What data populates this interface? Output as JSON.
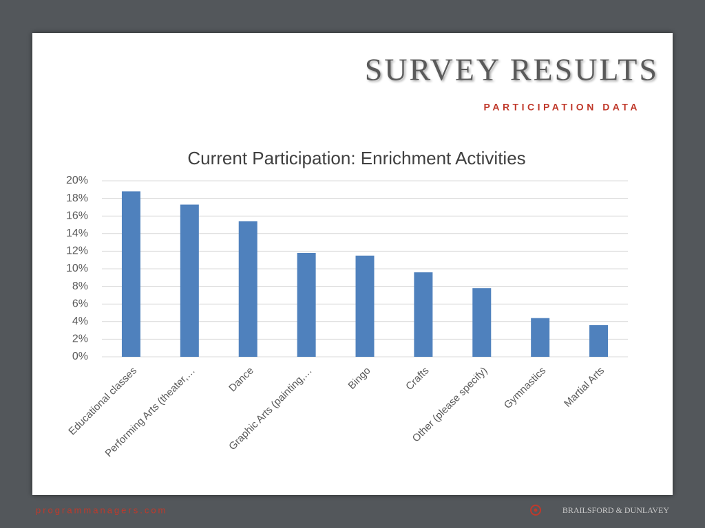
{
  "slide": {
    "title": "SURVEY RESULTS",
    "subtitle": "PARTICIPATION DATA",
    "footer_left": "programmanagers.com",
    "footer_right": "BRAILSFORD & DUNLAVEY"
  },
  "chart_data": {
    "type": "bar",
    "title": "Current Participation: Enrichment Activities",
    "categories": [
      "Educational classes",
      "Performing Arts (theater,…",
      "Dance",
      "Graphic Arts (painting,…",
      "Bingo",
      "Crafts",
      "Other (please specify)",
      "Gymnastics",
      "Martial Arts"
    ],
    "values": [
      18.8,
      17.3,
      15.4,
      11.8,
      11.5,
      9.6,
      7.8,
      4.4,
      3.6
    ],
    "color": "#4f81bd",
    "ylim": [
      0,
      20
    ],
    "yticks": [
      {
        "value": 0,
        "label": "0%"
      },
      {
        "value": 2,
        "label": "2%"
      },
      {
        "value": 4,
        "label": "4%"
      },
      {
        "value": 6,
        "label": "6%"
      },
      {
        "value": 8,
        "label": "8%"
      },
      {
        "value": 10,
        "label": "10%"
      },
      {
        "value": 12,
        "label": "12%"
      },
      {
        "value": 14,
        "label": "14%"
      },
      {
        "value": 16,
        "label": "16%"
      },
      {
        "value": 18,
        "label": "18%"
      },
      {
        "value": 20,
        "label": "20%"
      }
    ],
    "grid": true
  }
}
